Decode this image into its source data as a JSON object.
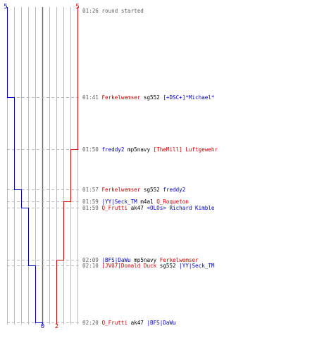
{
  "colors": {
    "red_team": "#cc0000",
    "blue_team": "#0000c0",
    "grid": "#bbbbbb",
    "dash": "#bbbbbb",
    "center": "#666666",
    "time_text": "#606060"
  },
  "scores": {
    "blue_start": "5",
    "red_start": "5",
    "blue_end": "0",
    "red_end": "2"
  },
  "events": [
    {
      "time": "01:26",
      "note": "round started",
      "blue_remaining": 5,
      "red_remaining": 5
    },
    {
      "time": "01:41",
      "killer": "Ferkelwemser",
      "killer_team": "red",
      "weapon": "sg552",
      "victim": "[+DSC+]*Michael*",
      "victim_team": "blue",
      "blue_remaining": 4,
      "red_remaining": 5
    },
    {
      "time": "01:50",
      "killer": "freddy2",
      "killer_team": "blue",
      "weapon": "mp5navy",
      "victim": "[TheMill] Luftgewehr",
      "victim_team": "red",
      "blue_remaining": 4,
      "red_remaining": 4
    },
    {
      "time": "01:57",
      "killer": "Ferkelwemser",
      "killer_team": "red",
      "weapon": "sg552",
      "victim": "freddy2",
      "victim_team": "blue",
      "blue_remaining": 3,
      "red_remaining": 4
    },
    {
      "time": "01:59",
      "killer": "|YY|Seck_TM",
      "killer_team": "blue",
      "weapon": "m4a1",
      "victim": "Q_Roqueton",
      "victim_team": "red",
      "blue_remaining": 3,
      "red_remaining": 3
    },
    {
      "time": "01:59",
      "killer": "Q_Frutti",
      "killer_team": "red",
      "weapon": "ak47",
      "victim": "<OLOs> Richard Kimble",
      "victim_team": "blue",
      "blue_remaining": 2,
      "red_remaining": 3
    },
    {
      "time": "02:09",
      "killer": "|BFS|DaWu",
      "killer_team": "blue",
      "weapon": "mp5navy",
      "victim": "Ferkelwemser",
      "victim_team": "red",
      "blue_remaining": 2,
      "red_remaining": 2
    },
    {
      "time": "02:10",
      "killer": "[JV07]Donald Duck",
      "killer_team": "red",
      "weapon": "sg552",
      "victim": "|YY|Seck_TM",
      "victim_team": "blue",
      "blue_remaining": 1,
      "red_remaining": 2
    },
    {
      "time": "02:20",
      "killer": "Q_Frutti",
      "killer_team": "red",
      "weapon": "ak47",
      "victim": "|BFS|DaWu",
      "victim_team": "blue",
      "blue_remaining": 0,
      "red_remaining": 2
    }
  ]
}
